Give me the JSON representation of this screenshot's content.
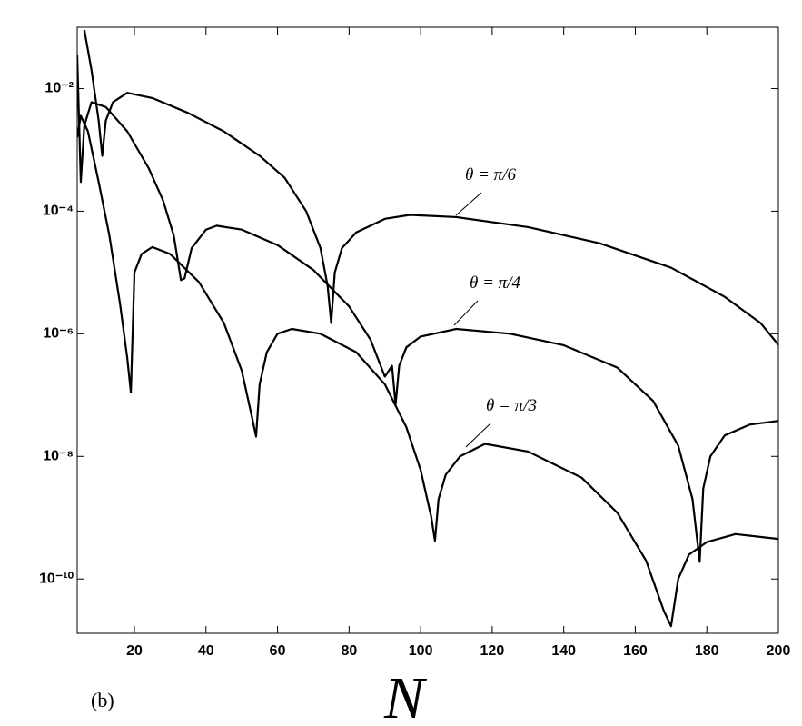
{
  "chart_data": {
    "type": "line",
    "panel_label": "(b)",
    "x_label": "N",
    "yscale": "log",
    "xlim": [
      4,
      200
    ],
    "ylim": [
      1.3e-11,
      0.1
    ],
    "xticks": [
      20,
      40,
      60,
      80,
      100,
      120,
      140,
      160,
      180,
      200
    ],
    "yticks": [
      {
        "value": 1e-10,
        "label": "10⁻¹⁰"
      },
      {
        "value": 1e-08,
        "label": "10⁻⁸"
      },
      {
        "value": 1e-06,
        "label": "10⁻⁶"
      },
      {
        "value": 0.0001,
        "label": "10⁻⁴"
      },
      {
        "value": 0.01,
        "label": "10⁻²"
      }
    ],
    "series": [
      {
        "name": "θ = π/6",
        "color": "#000000",
        "x": [
          6,
          8,
          10,
          11,
          12,
          14,
          18,
          25,
          35,
          45,
          55,
          62,
          68,
          72,
          74,
          75,
          76,
          78,
          82,
          90,
          97,
          110,
          130,
          150,
          170,
          185,
          195,
          200
        ],
        "values": [
          0.09,
          0.02,
          0.003,
          0.0008,
          0.003,
          0.006,
          0.0085,
          0.007,
          0.004,
          0.002,
          0.0008,
          0.00035,
          0.0001,
          2.5e-05,
          6e-06,
          1.5e-06,
          1e-05,
          2.5e-05,
          4.5e-05,
          7.5e-05,
          8.7e-05,
          8e-05,
          5.5e-05,
          3e-05,
          1.2e-05,
          4e-06,
          1.5e-06,
          6.6e-07
        ]
      },
      {
        "name": "θ = π/4",
        "color": "#000000",
        "x": [
          4,
          5,
          6,
          8,
          12,
          18,
          24,
          28,
          31,
          33,
          34,
          36,
          40,
          43,
          50,
          60,
          70,
          80,
          86,
          90,
          92,
          93,
          94,
          96,
          100,
          110,
          125,
          140,
          155,
          165,
          172,
          176,
          178,
          179,
          181,
          185,
          192,
          200
        ],
        "values": [
          0.035,
          0.0003,
          0.0025,
          0.006,
          0.005,
          0.002,
          0.0005,
          0.00015,
          4e-05,
          7.5e-06,
          8e-06,
          2.5e-05,
          5e-05,
          5.8e-05,
          5e-05,
          2.8e-05,
          1.1e-05,
          2.8e-06,
          8e-07,
          2e-07,
          3e-07,
          7e-08,
          3e-07,
          6e-07,
          9e-07,
          1.2e-06,
          1e-06,
          6.5e-07,
          2.8e-07,
          8e-08,
          1.5e-08,
          2e-09,
          1.9e-10,
          3e-09,
          1e-08,
          2.2e-08,
          3.3e-08,
          3.8e-08
        ]
      },
      {
        "name": "θ = π/3",
        "color": "#000000",
        "x": [
          4,
          5,
          7,
          10,
          13,
          16,
          18,
          19,
          20,
          22,
          25,
          30,
          38,
          45,
          50,
          53,
          54,
          55,
          57,
          60,
          64,
          72,
          82,
          90,
          96,
          100,
          103,
          104,
          105,
          107,
          111,
          118,
          130,
          145,
          155,
          163,
          168,
          170,
          172,
          175,
          180,
          188,
          200
        ],
        "values": [
          0.0016,
          0.0036,
          0.002,
          0.0003,
          4e-05,
          3e-06,
          4e-07,
          1.1e-07,
          1e-05,
          2e-05,
          2.6e-05,
          2e-05,
          7e-06,
          1.5e-06,
          2.5e-07,
          4e-08,
          2.1e-08,
          1.5e-07,
          5e-07,
          1e-06,
          1.2e-06,
          1e-06,
          5e-07,
          1.5e-07,
          3e-08,
          6e-09,
          1e-09,
          4.2e-10,
          2e-09,
          5e-09,
          1e-08,
          1.6e-08,
          1.2e-08,
          4.5e-09,
          1.2e-09,
          2e-10,
          3e-11,
          1.7e-11,
          1e-10,
          2.5e-10,
          4e-10,
          5.4e-10,
          4.5e-10
        ]
      }
    ]
  }
}
